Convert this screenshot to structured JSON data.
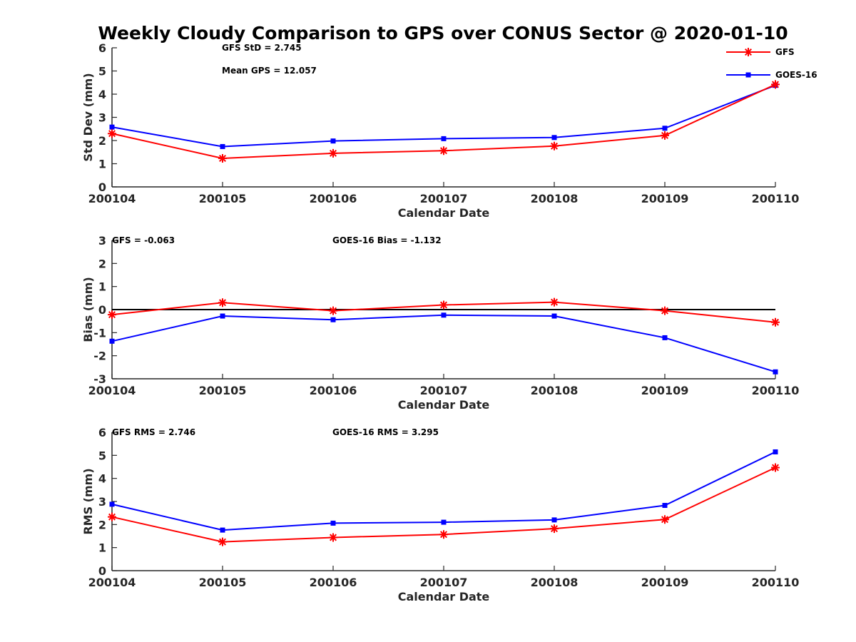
{
  "title": "Weekly Cloudy Comparison to GPS over CONUS Sector @ 2020-01-10",
  "legend": {
    "placement": "top-right",
    "entries": [
      {
        "name": "GFS",
        "color": "#ff0000",
        "marker": "asterisk"
      },
      {
        "name": "GOES-16",
        "color": "#0000ff",
        "marker": "square"
      }
    ]
  },
  "chart_data": [
    {
      "type": "line",
      "xlabel": "Calendar Date",
      "ylabel": "Std Dev (mm)",
      "categories": [
        "200104",
        "200105",
        "200106",
        "200107",
        "200108",
        "200109",
        "200110"
      ],
      "ylim": [
        0,
        6
      ],
      "yticks": [
        "0",
        "1",
        "2",
        "3",
        "4",
        "5",
        "6"
      ],
      "grid": false,
      "series": [
        {
          "name": "GFS",
          "color": "#ff0000",
          "marker": "asterisk",
          "values": [
            2.3,
            1.23,
            1.45,
            1.56,
            1.76,
            2.22,
            4.42
          ]
        },
        {
          "name": "GOES-16",
          "color": "#0000ff",
          "marker": "square",
          "values": [
            2.58,
            1.74,
            1.98,
            2.08,
            2.13,
            2.53,
            4.38
          ]
        }
      ],
      "annotations": [
        "GFS StD = 2.745",
        "Mean GPS = 12.057"
      ]
    },
    {
      "type": "line",
      "xlabel": "Calendar Date",
      "ylabel": "Bias (mm)",
      "categories": [
        "200104",
        "200105",
        "200106",
        "200107",
        "200108",
        "200109",
        "200110"
      ],
      "ylim": [
        -3,
        3
      ],
      "yticks": [
        "-3",
        "-2",
        "-1",
        "0",
        "1",
        "2",
        "3"
      ],
      "grid": false,
      "zero_line": true,
      "series": [
        {
          "name": "GFS",
          "color": "#ff0000",
          "marker": "asterisk",
          "values": [
            -0.22,
            0.3,
            -0.05,
            0.2,
            0.32,
            -0.05,
            -0.55
          ]
        },
        {
          "name": "GOES-16",
          "color": "#0000ff",
          "marker": "square",
          "values": [
            -1.37,
            -0.28,
            -0.44,
            -0.24,
            -0.28,
            -1.22,
            -2.7
          ]
        }
      ],
      "annotations": [
        "GFS = -0.063",
        "GOES-16 Bias  = -1.132"
      ]
    },
    {
      "type": "line",
      "xlabel": "Calendar Date",
      "ylabel": "RMS (mm)",
      "categories": [
        "200104",
        "200105",
        "200106",
        "200107",
        "200108",
        "200109",
        "200110"
      ],
      "ylim": [
        0,
        6
      ],
      "yticks": [
        "0",
        "1",
        "2",
        "3",
        "4",
        "5",
        "6"
      ],
      "grid": false,
      "series": [
        {
          "name": "GFS",
          "color": "#ff0000",
          "marker": "asterisk",
          "values": [
            2.33,
            1.25,
            1.44,
            1.57,
            1.82,
            2.22,
            4.47
          ]
        },
        {
          "name": "GOES-16",
          "color": "#0000ff",
          "marker": "square",
          "values": [
            2.88,
            1.76,
            2.06,
            2.1,
            2.2,
            2.83,
            5.15
          ]
        }
      ],
      "annotations": [
        "GFS RMS = 2.746",
        "GOES-16 RMS = 3.295"
      ]
    }
  ]
}
